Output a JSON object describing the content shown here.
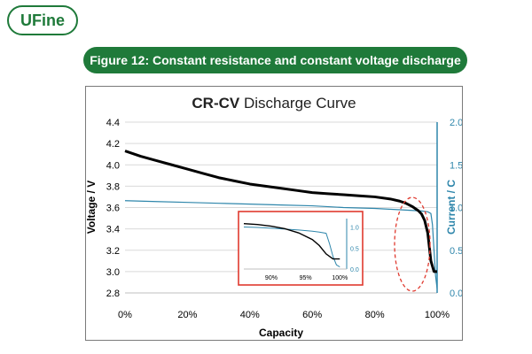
{
  "logo": {
    "text": "UFine"
  },
  "banner": {
    "text": "Figure 12: Constant resistance and constant voltage discharge"
  },
  "chart_data": {
    "type": "line",
    "title": "CR-CV Discharge Curve",
    "title_bold_part": "CR-CV",
    "title_rest": " Discharge Curve",
    "xlabel": "Capacity",
    "ylabel_left": "Voltage / V",
    "ylabel_right": "Current / C",
    "xlim": [
      0,
      100
    ],
    "ylim_left": [
      2.8,
      4.4
    ],
    "ylim_right": [
      0.0,
      2.0
    ],
    "x_ticks": [
      "0%",
      "20%",
      "40%",
      "60%",
      "80%",
      "100%"
    ],
    "y_left_ticks": [
      "2.8",
      "3.0",
      "3.2",
      "3.4",
      "3.6",
      "3.8",
      "4.0",
      "4.2",
      "4.4"
    ],
    "y_right_ticks": [
      "0.0",
      "0.5",
      "1.0",
      "1.5",
      "2.0"
    ],
    "grid": true,
    "colors": {
      "voltage": "#000000",
      "current": "#2e86ab",
      "inset_border": "#e03a2f",
      "ellipse": "#e03a2f",
      "right_axis": "#2e86ab"
    },
    "series": [
      {
        "name": "Voltage",
        "axis": "left",
        "x": [
          0,
          5,
          10,
          15,
          20,
          25,
          30,
          35,
          40,
          45,
          50,
          55,
          60,
          65,
          70,
          75,
          80,
          85,
          88,
          90,
          92,
          94,
          95,
          96,
          97,
          98,
          99,
          100
        ],
        "y": [
          4.13,
          4.08,
          4.04,
          4.0,
          3.96,
          3.92,
          3.88,
          3.85,
          3.82,
          3.8,
          3.78,
          3.76,
          3.74,
          3.73,
          3.72,
          3.71,
          3.7,
          3.68,
          3.66,
          3.64,
          3.61,
          3.57,
          3.54,
          3.48,
          3.36,
          3.1,
          3.0,
          3.0
        ]
      },
      {
        "name": "Current",
        "axis": "right",
        "x": [
          0,
          10,
          20,
          30,
          40,
          50,
          60,
          70,
          80,
          90,
          95,
          97,
          98,
          98.5,
          99,
          99.5,
          100
        ],
        "y": [
          1.08,
          1.07,
          1.06,
          1.05,
          1.04,
          1.03,
          1.02,
          1.0,
          0.99,
          0.97,
          0.96,
          0.95,
          0.93,
          0.8,
          0.5,
          0.2,
          0.05
        ]
      }
    ],
    "inset": {
      "x_ticks": [
        "90%",
        "95%",
        "100%"
      ],
      "y_ticks": [
        "0.0",
        "0.5",
        "1.0"
      ],
      "xlim": [
        86,
        101
      ],
      "ylim": [
        0.0,
        1.2
      ],
      "series": [
        {
          "name": "Voltage",
          "x": [
            86,
            88,
            90,
            92,
            94,
            96,
            97,
            98,
            99,
            100
          ],
          "y": [
            1.08,
            1.06,
            1.02,
            0.96,
            0.86,
            0.7,
            0.56,
            0.36,
            0.24,
            0.24
          ]
        },
        {
          "name": "Current",
          "x": [
            86,
            88,
            90,
            92,
            94,
            96,
            97,
            98,
            98.5,
            99,
            99.5,
            100
          ],
          "y": [
            1.0,
            0.99,
            0.97,
            0.95,
            0.93,
            0.9,
            0.88,
            0.85,
            0.6,
            0.3,
            0.1,
            0.05
          ]
        }
      ]
    }
  }
}
